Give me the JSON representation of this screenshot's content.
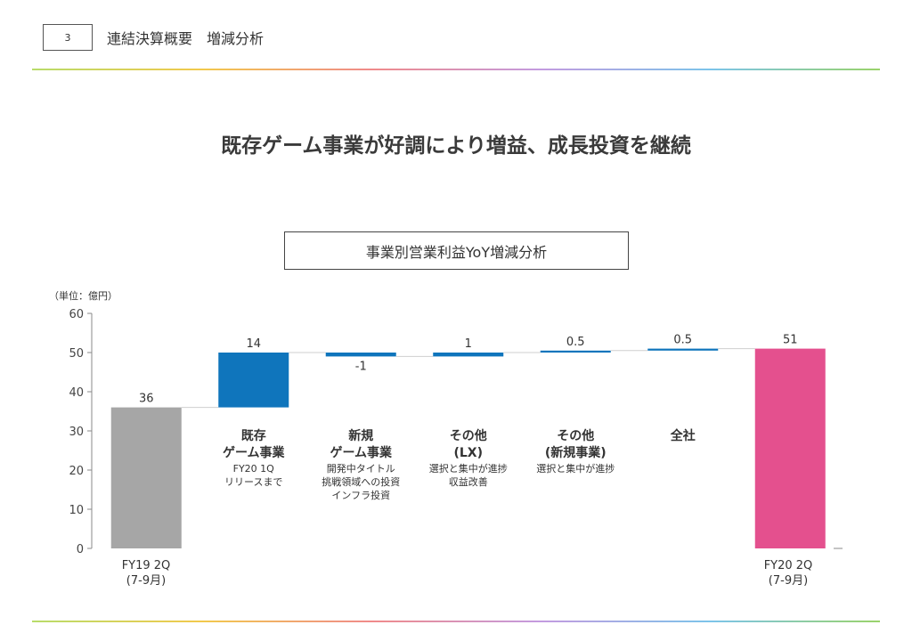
{
  "header": {
    "page_number": "3",
    "section_title": "連結決算概要　増減分析",
    "headline": "既存ゲーム事業が好調により増益、成長投資を継続"
  },
  "colors": {
    "rule_gradient": [
      "#b8dc6a",
      "#f2c94c",
      "#f08a8a",
      "#c39be0",
      "#7cc4ea",
      "#9ad36a"
    ],
    "start_bar": "#a6a6a6",
    "delta_bar": "#0f75bc",
    "end_bar": "#e4508e"
  },
  "chart_data": {
    "type": "bar",
    "subtype": "waterfall",
    "title": "事業別営業利益YoY増減分析",
    "unit_label": "（単位：億円）",
    "ylim": [
      0,
      60
    ],
    "yticks": [
      0,
      10,
      20,
      30,
      40,
      50,
      60
    ],
    "grid": false,
    "bars": [
      {
        "role": "total",
        "value": 36,
        "label": "36"
      },
      {
        "role": "delta",
        "value": 14,
        "label": "14"
      },
      {
        "role": "delta",
        "value": -1,
        "label": "-1"
      },
      {
        "role": "delta",
        "value": 1,
        "label": "1"
      },
      {
        "role": "delta",
        "value": 0.5,
        "label": "0.5"
      },
      {
        "role": "delta",
        "value": 0.5,
        "label": "0.5"
      },
      {
        "role": "total",
        "value": 51,
        "label": "51"
      }
    ],
    "start_label": [
      "FY19 2Q",
      "(7-9月)"
    ],
    "end_label": [
      "FY20 2Q",
      "(7-9月)"
    ],
    "categories": [
      {
        "title": [
          "既存",
          "ゲーム事業"
        ],
        "notes": [
          "FY20 1Q",
          "リリースまで"
        ]
      },
      {
        "title": [
          "新規",
          "ゲーム事業"
        ],
        "notes": [
          "開発中タイトル",
          "挑戦領域への投資",
          "インフラ投資"
        ]
      },
      {
        "title": [
          "その他",
          "(LX)"
        ],
        "notes": [
          "選択と集中が進捗",
          "収益改善"
        ]
      },
      {
        "title": [
          "その他",
          "(新規事業)"
        ],
        "notes": [
          "選択と集中が進捗"
        ]
      },
      {
        "title": [
          "全社"
        ],
        "notes": []
      }
    ]
  }
}
